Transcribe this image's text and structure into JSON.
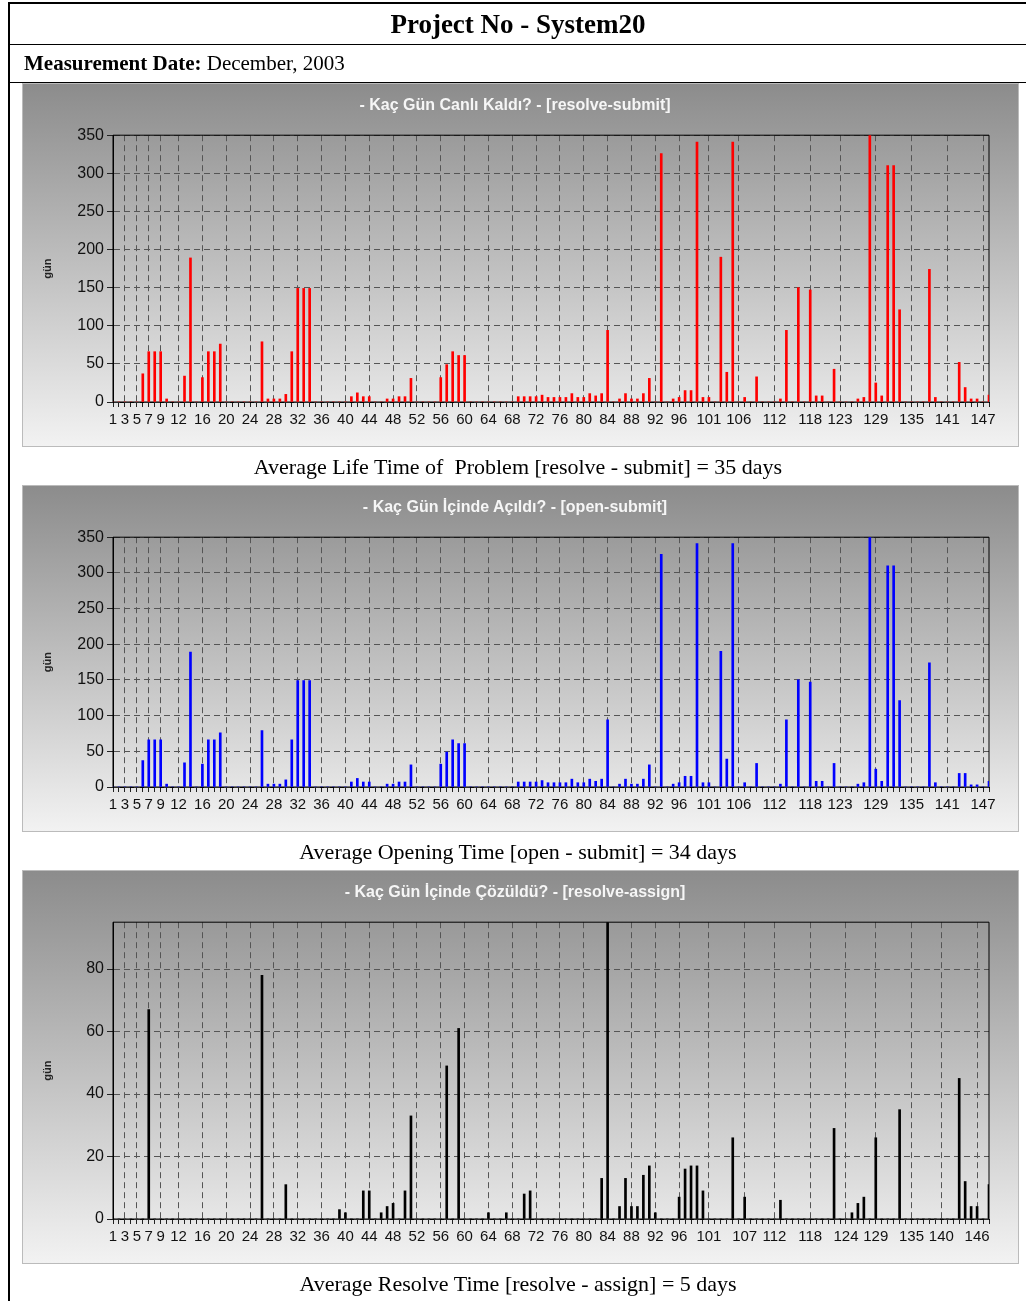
{
  "chart_data": [
    {
      "type": "other",
      "title": "Project No - System20",
      "subtitle": "Measurement Date: December, 2003"
    },
    {
      "type": "bar",
      "title": "- Kaç Gün Canlı Kaldı? - [resolve-submit]",
      "ylabel": "gün",
      "color": "#ff0000",
      "grid": true,
      "ylim": [
        0,
        350
      ],
      "yticks": [
        0,
        50,
        100,
        150,
        200,
        250,
        300,
        350
      ],
      "categories": [
        "1",
        null,
        "3",
        null,
        "5",
        null,
        "7",
        null,
        "9",
        null,
        null,
        "12",
        null,
        null,
        null,
        "16",
        null,
        null,
        null,
        "20",
        null,
        null,
        null,
        "24",
        null,
        null,
        null,
        "28",
        null,
        null,
        null,
        "32",
        null,
        null,
        null,
        "36",
        null,
        null,
        null,
        "40",
        null,
        null,
        null,
        "44",
        null,
        null,
        null,
        "48",
        null,
        null,
        null,
        "52",
        null,
        null,
        null,
        "56",
        null,
        null,
        null,
        "60",
        null,
        null,
        null,
        "64",
        null,
        null,
        null,
        "68",
        null,
        null,
        null,
        "72",
        null,
        null,
        null,
        "76",
        null,
        null,
        null,
        "80",
        null,
        null,
        null,
        "84",
        null,
        null,
        null,
        "88",
        null,
        null,
        null,
        "92",
        null,
        null,
        null,
        "96",
        null,
        null,
        null,
        null,
        "101",
        null,
        null,
        null,
        null,
        "106",
        null,
        null,
        null,
        null,
        null,
        "112",
        null,
        null,
        null,
        null,
        null,
        "118",
        null,
        null,
        null,
        null,
        "123",
        null,
        null,
        null,
        null,
        null,
        "129",
        null,
        null,
        null,
        null,
        null,
        "135",
        null,
        null,
        null,
        null,
        null,
        "141",
        null,
        null,
        null,
        null,
        null,
        "147",
        null
      ],
      "values": [
        0,
        0,
        0,
        0,
        0,
        37,
        66,
        66,
        66,
        4,
        0,
        0,
        34,
        189,
        0,
        32,
        66,
        66,
        76,
        0,
        0,
        0,
        0,
        0,
        0,
        79,
        4,
        4,
        4,
        10,
        66,
        149,
        149,
        149,
        0,
        0,
        0,
        0,
        0,
        0,
        7,
        12,
        7,
        7,
        0,
        0,
        4,
        4,
        7,
        7,
        31,
        0,
        0,
        0,
        0,
        32,
        49,
        66,
        61,
        61,
        0,
        0,
        0,
        0,
        0,
        0,
        0,
        0,
        7,
        7,
        7,
        7,
        9,
        6,
        6,
        6,
        6,
        11,
        6,
        6,
        11,
        8,
        11,
        94,
        0,
        4,
        11,
        4,
        4,
        11,
        31,
        0,
        326,
        0,
        4,
        6,
        15,
        15,
        341,
        6,
        6,
        0,
        190,
        39,
        341,
        0,
        6,
        0,
        33,
        0,
        0,
        0,
        4,
        94,
        0,
        150,
        0,
        147,
        8,
        8,
        0,
        43,
        0,
        0,
        0,
        4,
        6,
        350,
        25,
        8,
        310,
        310,
        121,
        0,
        0,
        0,
        0,
        174,
        6,
        0,
        0,
        0,
        52,
        19,
        4,
        4,
        0,
        9
      ],
      "annotations": [
        "Average Life Time of  Problem [resolve - submit] = 35 days"
      ]
    },
    {
      "type": "bar",
      "title": "- Kaç Gün İçinde Açıldı? - [open-submit]",
      "ylabel": "gün",
      "color": "#0000ff",
      "grid": true,
      "ylim": [
        0,
        350
      ],
      "yticks": [
        0,
        50,
        100,
        150,
        200,
        250,
        300,
        350
      ],
      "categories": [
        "1",
        null,
        "3",
        null,
        "5",
        null,
        "7",
        null,
        "9",
        null,
        null,
        "12",
        null,
        null,
        null,
        "16",
        null,
        null,
        null,
        "20",
        null,
        null,
        null,
        "24",
        null,
        null,
        null,
        "28",
        null,
        null,
        null,
        "32",
        null,
        null,
        null,
        "36",
        null,
        null,
        null,
        "40",
        null,
        null,
        null,
        "44",
        null,
        null,
        null,
        "48",
        null,
        null,
        null,
        "52",
        null,
        null,
        null,
        "56",
        null,
        null,
        null,
        "60",
        null,
        null,
        null,
        "64",
        null,
        null,
        null,
        "68",
        null,
        null,
        null,
        "72",
        null,
        null,
        null,
        "76",
        null,
        null,
        null,
        "80",
        null,
        null,
        null,
        "84",
        null,
        null,
        null,
        "88",
        null,
        null,
        null,
        "92",
        null,
        null,
        null,
        "96",
        null,
        null,
        null,
        null,
        "101",
        null,
        null,
        null,
        null,
        "106",
        null,
        null,
        null,
        null,
        null,
        "112",
        null,
        null,
        null,
        null,
        null,
        "118",
        null,
        null,
        null,
        null,
        "123",
        null,
        null,
        null,
        null,
        null,
        "129",
        null,
        null,
        null,
        null,
        null,
        "135",
        null,
        null,
        null,
        null,
        null,
        "141",
        null,
        null,
        null,
        null,
        null,
        "147",
        null
      ],
      "values": [
        0,
        0,
        0,
        0,
        0,
        37,
        66,
        66,
        66,
        4,
        0,
        0,
        34,
        189,
        0,
        32,
        66,
        66,
        76,
        0,
        0,
        0,
        0,
        0,
        0,
        79,
        4,
        4,
        4,
        10,
        66,
        149,
        149,
        149,
        0,
        0,
        0,
        0,
        0,
        0,
        7,
        12,
        7,
        7,
        0,
        0,
        4,
        4,
        7,
        7,
        31,
        0,
        0,
        0,
        0,
        32,
        49,
        66,
        61,
        61,
        0,
        0,
        0,
        0,
        0,
        0,
        0,
        0,
        7,
        7,
        7,
        7,
        9,
        6,
        6,
        6,
        6,
        11,
        6,
        6,
        11,
        8,
        11,
        94,
        0,
        4,
        11,
        4,
        4,
        11,
        31,
        0,
        326,
        0,
        4,
        6,
        15,
        15,
        341,
        6,
        6,
        0,
        190,
        39,
        341,
        0,
        6,
        0,
        33,
        0,
        0,
        0,
        4,
        94,
        0,
        150,
        0,
        147,
        8,
        8,
        0,
        33,
        0,
        0,
        0,
        4,
        6,
        350,
        25,
        8,
        310,
        310,
        121,
        0,
        0,
        0,
        0,
        174,
        6,
        0,
        0,
        0,
        19,
        19,
        3,
        3,
        0,
        8
      ],
      "annotations": [
        "Average Opening Time [open - submit] = 34 days"
      ]
    },
    {
      "type": "bar",
      "title": "- Kaç Gün İçinde Çözüldü? - [resolve-assign]",
      "ylabel": "gün",
      "color": "#000000",
      "grid": true,
      "ylim": [
        0,
        95
      ],
      "yticks": [
        0,
        20,
        40,
        60,
        80
      ],
      "categories": [
        "1",
        null,
        "3",
        null,
        "5",
        null,
        "7",
        null,
        "9",
        null,
        null,
        "12",
        null,
        null,
        null,
        "16",
        null,
        null,
        null,
        "20",
        null,
        null,
        null,
        "24",
        null,
        null,
        null,
        "28",
        null,
        null,
        null,
        "32",
        null,
        null,
        null,
        "36",
        null,
        null,
        null,
        "40",
        null,
        null,
        null,
        "44",
        null,
        null,
        null,
        "48",
        null,
        null,
        null,
        "52",
        null,
        null,
        null,
        "56",
        null,
        null,
        null,
        "60",
        null,
        null,
        null,
        "64",
        null,
        null,
        null,
        "68",
        null,
        null,
        null,
        "72",
        null,
        null,
        null,
        "76",
        null,
        null,
        null,
        "80",
        null,
        null,
        null,
        "84",
        null,
        null,
        null,
        "88",
        null,
        null,
        null,
        "92",
        null,
        null,
        null,
        "96",
        null,
        null,
        null,
        null,
        "101",
        null,
        null,
        null,
        null,
        null,
        "107",
        null,
        null,
        null,
        null,
        "112",
        null,
        null,
        null,
        null,
        null,
        "118",
        null,
        null,
        null,
        null,
        null,
        "124",
        null,
        null,
        null,
        null,
        "129",
        null,
        null,
        null,
        null,
        null,
        "135",
        null,
        null,
        null,
        null,
        "140",
        null,
        null,
        null,
        null,
        null,
        "146",
        null,
        null
      ],
      "values": [
        0,
        0,
        0,
        0,
        0,
        0,
        67,
        0,
        0,
        0,
        0,
        0,
        0,
        0,
        0,
        0,
        0,
        0,
        0,
        0,
        0,
        0,
        0,
        0,
        0,
        78,
        0,
        0,
        0,
        11,
        0,
        0,
        0,
        0,
        0,
        0,
        0,
        0,
        3,
        2,
        0,
        0,
        9,
        9,
        0,
        2,
        4,
        5,
        0,
        9,
        33,
        0,
        0,
        0,
        0,
        0,
        49,
        0,
        61,
        0,
        0,
        0,
        0,
        2,
        0,
        0,
        2,
        0,
        0,
        8,
        9,
        0,
        0,
        0,
        0,
        0,
        0,
        0,
        0,
        0,
        0,
        0,
        13,
        95,
        0,
        4,
        13,
        4,
        4,
        14,
        17,
        2,
        0,
        0,
        0,
        7,
        16,
        17,
        17,
        9,
        0,
        0,
        0,
        0,
        26,
        0,
        7,
        0,
        0,
        0,
        0,
        0,
        6,
        0,
        0,
        0,
        0,
        0,
        0,
        0,
        0,
        29,
        0,
        0,
        2,
        5,
        7,
        0,
        26,
        0,
        0,
        0,
        35,
        0,
        0,
        0,
        0,
        0,
        0,
        0,
        0,
        0,
        45,
        12,
        4,
        4,
        0,
        11
      ],
      "annotations": [
        "Average Resolve Time [resolve - assign] = 5 days"
      ]
    }
  ]
}
